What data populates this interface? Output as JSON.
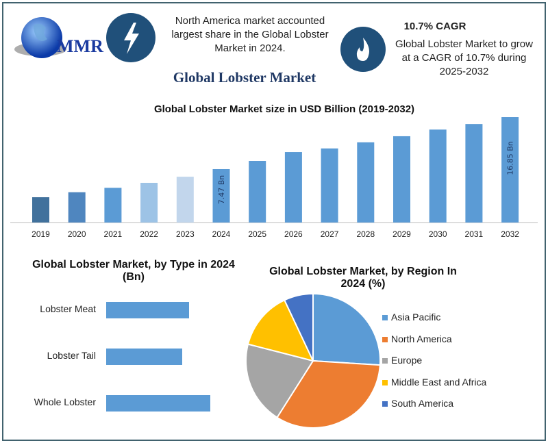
{
  "header": {
    "logo_text": "MMR",
    "highlight_text": "North America market accounted largest share in the Global Lobster Market in 2024.",
    "cagr_title": "10.7% CAGR",
    "cagr_text": "Global Lobster Market to grow at a CAGR of 10.7% during 2025-2032",
    "main_title": "Global Lobster Market",
    "icons": [
      "globe-logo",
      "lightning-icon",
      "flame-icon"
    ],
    "icon_color": "#20507a"
  },
  "chart_data": [
    {
      "type": "bar",
      "title": "Global Lobster Market size in USD Billion (2019-2032)",
      "categories": [
        "2019",
        "2020",
        "2021",
        "2022",
        "2023",
        "2024",
        "2025",
        "2026",
        "2027",
        "2028",
        "2029",
        "2030",
        "2031",
        "2032"
      ],
      "values": [
        2.4,
        3.3,
        4.1,
        5.0,
        6.1,
        7.47,
        8.95,
        10.55,
        11.2,
        12.3,
        13.4,
        14.6,
        15.6,
        16.85
      ],
      "data_labels": {
        "2024": "7.47 Bn",
        "2032": "16.85 Bn"
      },
      "colors": [
        "#41719c",
        "#4f86bf",
        "#5b9bd5",
        "#9dc3e6",
        "#c2d6ec",
        "#5b9bd5",
        "#5b9bd5",
        "#5b9bd5",
        "#5b9bd5",
        "#5b9bd5",
        "#5b9bd5",
        "#5b9bd5",
        "#5b9bd5",
        "#5b9bd5"
      ]
    },
    {
      "type": "bar",
      "orientation": "horizontal",
      "title": "Global Lobster Market, by Type in 2024 (Bn)",
      "categories": [
        "Lobster Meat",
        "Lobster Tail",
        "Whole Lobster"
      ],
      "values": [
        1.2,
        1.1,
        1.5
      ],
      "color": "#5b9bd5"
    },
    {
      "type": "pie",
      "title": "Global Lobster Market, by Region In 2024 (%)",
      "categories": [
        "Asia Pacific",
        "North America",
        "Europe",
        "Middle East and Africa",
        "South America"
      ],
      "values": [
        26,
        33,
        20,
        14,
        7
      ],
      "colors": [
        "#5b9bd5",
        "#ed7d31",
        "#a5a5a5",
        "#ffc000",
        "#4472c4"
      ],
      "legend": "right"
    }
  ]
}
